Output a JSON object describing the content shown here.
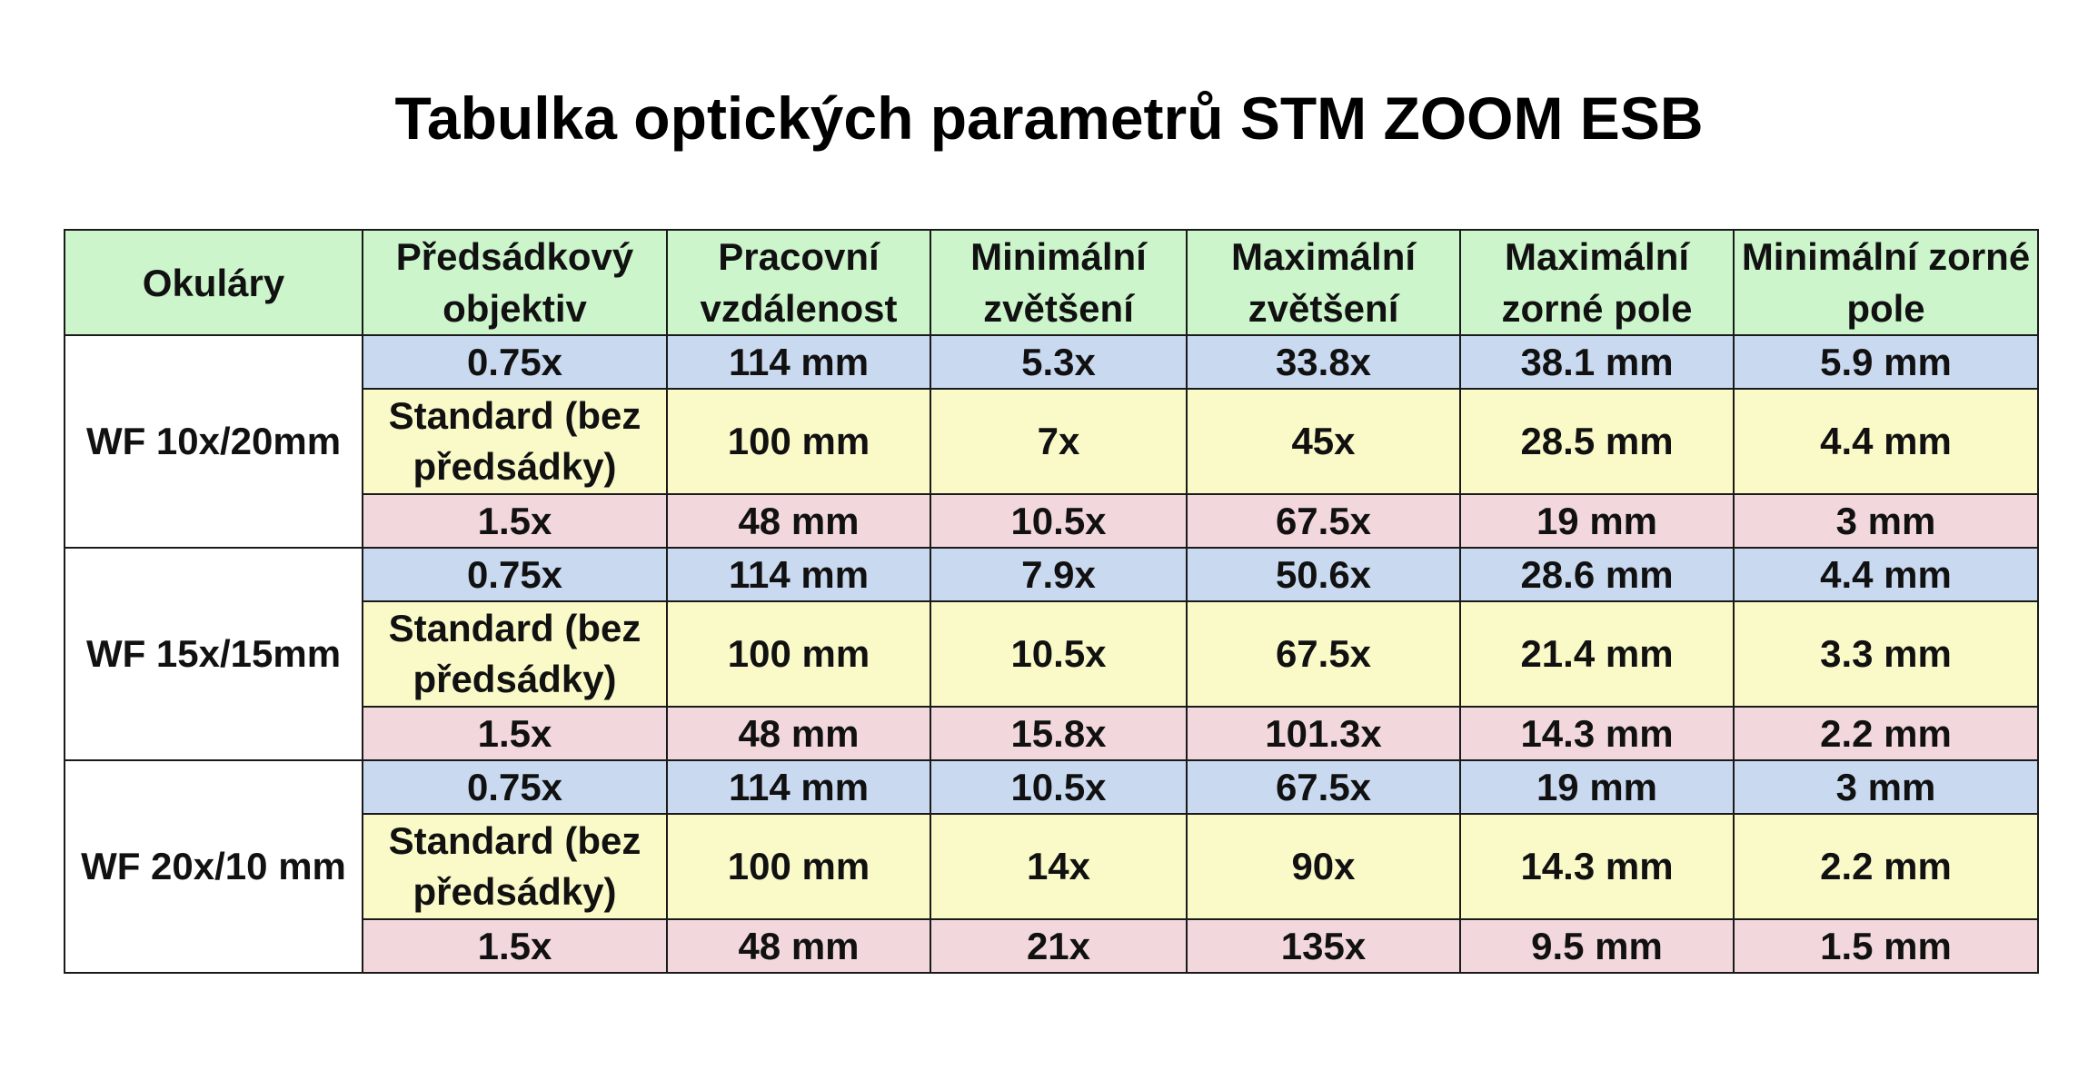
{
  "title": "Tabulka optických parametrů STM ZOOM ESB",
  "colors": {
    "header_bg": "#ccf5cc",
    "row_blue": "#c9d9f0",
    "row_yellow": "#fafac8",
    "row_pink": "#f2d8dc",
    "border": "#1a1a1a"
  },
  "table": {
    "headers": [
      "Okuláry",
      "Předsádkový objektiv",
      "Pracovní vzdálenost",
      "Minimální zvětšení",
      "Maximální zvětšení",
      "Maximální zorné pole",
      "Minimální zorné pole"
    ],
    "groups": [
      {
        "eyepiece": "WF 10x/20mm",
        "rows": [
          [
            "0.75x",
            "114 mm",
            "5.3x",
            "33.8x",
            "38.1 mm",
            "5.9 mm"
          ],
          [
            "Standard (bez předsádky)",
            "100 mm",
            "7x",
            "45x",
            "28.5 mm",
            "4.4 mm"
          ],
          [
            "1.5x",
            "48 mm",
            "10.5x",
            "67.5x",
            "19 mm",
            "3 mm"
          ]
        ]
      },
      {
        "eyepiece": "WF  15x/15mm",
        "rows": [
          [
            "0.75x",
            "114 mm",
            "7.9x",
            "50.6x",
            "28.6 mm",
            "4.4 mm"
          ],
          [
            "Standard (bez předsádky)",
            "100 mm",
            "10.5x",
            "67.5x",
            "21.4 mm",
            "3.3 mm"
          ],
          [
            "1.5x",
            "48 mm",
            "15.8x",
            "101.3x",
            "14.3 mm",
            "2.2 mm"
          ]
        ]
      },
      {
        "eyepiece": "WF 20x/10 mm",
        "rows": [
          [
            "0.75x",
            "114 mm",
            "10.5x",
            "67.5x",
            "19 mm",
            "3 mm"
          ],
          [
            "Standard (bez předsádky)",
            "100 mm",
            "14x",
            "90x",
            "14.3 mm",
            "2.2 mm"
          ],
          [
            "1.5x",
            "48 mm",
            "21x",
            "135x",
            "9.5 mm",
            "1.5 mm"
          ]
        ]
      }
    ]
  }
}
